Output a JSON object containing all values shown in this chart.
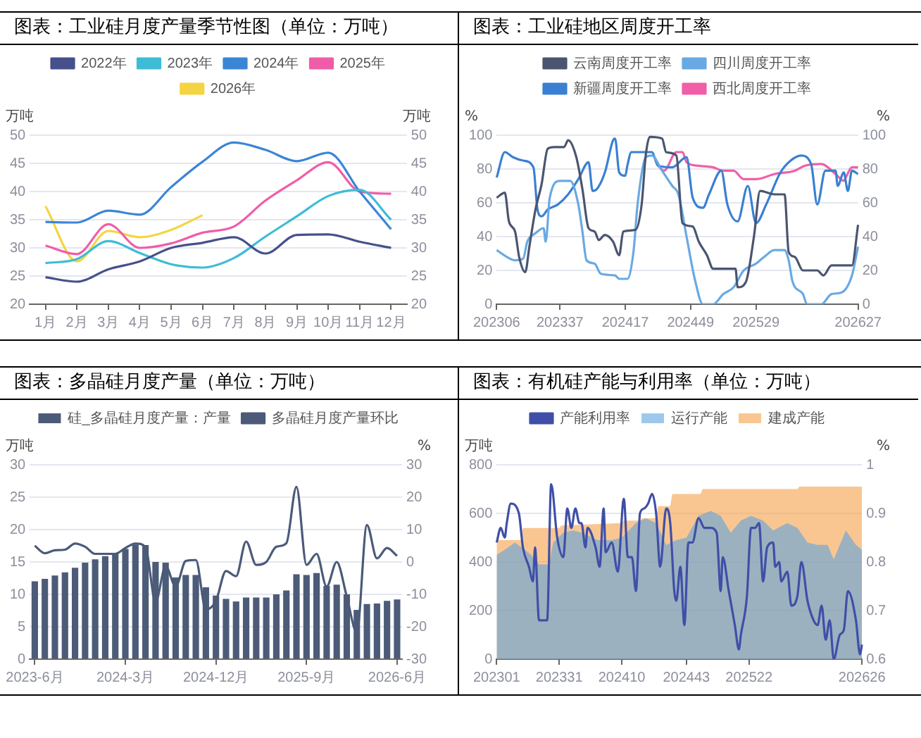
{
  "chart_data": [
    {
      "type": "line",
      "title": "图表：工业硅月度产量季节性图（单位：万吨）",
      "ylabel": "万吨",
      "y2label": "万吨",
      "categories": [
        "1月",
        "2月",
        "3月",
        "4月",
        "5月",
        "6月",
        "7月",
        "8月",
        "9月",
        "10月",
        "11月",
        "12月"
      ],
      "ylim": [
        20,
        50
      ],
      "yticks": [
        20,
        25,
        30,
        35,
        40,
        45,
        50
      ],
      "y2lim": [
        20,
        50
      ],
      "y2ticks": [
        20,
        25,
        30,
        35,
        40,
        45,
        50
      ],
      "grid": "y",
      "legend": "top",
      "series": [
        {
          "name": "2022年",
          "color": "#46508a",
          "values": [
            24.8,
            24.0,
            26.2,
            27.6,
            30.0,
            30.9,
            31.9,
            29.0,
            32.3,
            32.4,
            31.1,
            30.0
          ]
        },
        {
          "name": "2023年",
          "color": "#3ebcd6",
          "values": [
            27.3,
            28.0,
            31.2,
            29.1,
            27.1,
            26.5,
            28.2,
            32.0,
            35.6,
            39.2,
            40.3,
            35.0
          ]
        },
        {
          "name": "2024年",
          "color": "#3b85d6",
          "values": [
            34.6,
            34.5,
            36.6,
            35.9,
            40.8,
            45.3,
            48.7,
            47.4,
            45.4,
            46.9,
            40.0,
            33.3
          ]
        },
        {
          "name": "2025年",
          "color": "#f15ca8",
          "values": [
            30.4,
            28.9,
            34.2,
            30.0,
            30.8,
            32.7,
            33.8,
            38.4,
            42.0,
            45.2,
            40.0,
            39.6
          ]
        },
        {
          "name": "2026年",
          "color": "#f5d442",
          "values": [
            37.4,
            27.6,
            33.0,
            31.9,
            33.2,
            35.8,
            null,
            null,
            null,
            null,
            null,
            null
          ]
        }
      ]
    },
    {
      "type": "line",
      "title": "图表：工业硅地区周度开工率",
      "ylabel": "%",
      "y2label": "%",
      "categories": [
        "202306",
        null,
        null,
        null,
        null,
        null,
        null,
        null,
        null,
        null,
        null,
        null,
        null,
        null,
        null,
        null,
        null,
        null,
        null,
        null,
        null,
        null,
        null,
        null,
        null,
        null,
        null,
        null,
        null,
        null,
        null,
        "202337",
        null,
        null,
        null,
        null,
        null,
        null,
        null,
        null,
        null,
        null,
        null,
        null,
        null,
        null,
        null,
        null,
        null,
        null,
        null,
        null,
        null,
        null,
        null,
        null,
        null,
        null,
        null,
        null,
        null,
        null,
        null,
        "202417",
        null,
        null,
        null,
        null,
        null,
        null,
        null,
        null,
        null,
        null,
        null,
        null,
        null,
        null,
        null,
        null,
        null,
        null,
        null,
        null,
        null,
        null,
        null,
        null,
        null,
        null,
        null,
        null,
        null,
        null,
        null,
        "202449",
        null,
        null,
        null,
        null,
        null,
        null,
        null,
        null,
        null,
        null,
        null,
        null,
        null,
        null,
        null,
        null,
        null,
        null,
        null,
        null,
        null,
        null,
        null,
        null,
        null,
        null,
        null,
        null,
        null,
        null,
        null,
        "202529",
        null,
        null,
        null,
        null,
        null,
        null,
        null,
        null,
        null,
        null,
        null,
        null,
        null,
        null,
        null,
        null,
        null,
        null,
        null,
        null,
        null,
        null,
        null,
        null,
        null,
        null,
        null,
        null,
        null,
        null,
        null,
        null,
        null,
        null,
        null,
        null,
        null,
        null,
        null,
        null,
        null,
        null,
        null,
        null,
        null,
        null,
        null,
        null,
        null,
        "202627"
      ],
      "ylim": [
        0,
        100
      ],
      "yticks": [
        0,
        20,
        40,
        60,
        80,
        100
      ],
      "y2lim": [
        0,
        100
      ],
      "y2ticks": [
        0,
        20,
        40,
        60,
        80,
        100
      ],
      "grid": "y",
      "legend": "top",
      "series": [
        {
          "name": "云南周度开工率",
          "color": "#4a5570",
          "values": [
            63,
            null,
            null,
            null,
            66,
            null,
            49,
            null,
            null,
            43,
            null,
            28,
            null,
            null,
            19,
            null,
            34,
            null,
            null,
            56,
            null,
            null,
            71,
            null,
            null,
            92,
            null,
            null,
            93,
            null,
            null,
            null,
            null,
            93,
            null,
            97,
            null,
            null,
            null,
            87,
            null,
            null,
            68,
            null,
            null,
            45,
            null,
            null,
            43,
            null,
            38,
            null,
            null,
            41,
            null,
            null,
            null,
            37,
            null,
            null,
            29,
            null,
            43,
            null,
            null,
            null,
            null,
            null,
            44,
            null,
            null,
            59,
            null,
            88,
            null,
            99,
            null,
            null,
            null,
            null,
            null,
            98,
            null,
            90,
            null,
            null,
            null,
            null,
            88,
            null,
            null,
            48,
            null,
            null,
            null,
            null,
            46,
            null,
            null,
            37,
            null,
            null,
            null,
            29,
            null,
            null,
            21,
            null,
            null,
            null,
            null,
            null,
            21,
            null,
            null,
            null,
            null,
            21,
            10,
            null,
            null,
            null,
            13,
            null,
            null,
            null,
            40,
            null,
            null,
            67,
            null,
            null,
            null,
            null,
            null,
            null,
            65,
            null,
            null,
            null,
            null,
            65,
            null,
            31,
            null,
            null,
            28,
            null,
            null,
            null,
            20,
            null,
            null,
            null,
            null,
            null,
            null,
            20,
            null,
            null,
            17,
            null,
            null,
            null,
            23,
            null,
            null,
            null,
            null,
            null,
            null,
            null,
            null,
            null,
            23,
            null,
            null,
            47
          ]
        },
        {
          "name": "四川周度开工率",
          "color": "#69a9e3",
          "values": [
            32,
            null,
            null,
            null,
            null,
            28,
            null,
            null,
            null,
            26,
            null,
            null,
            null,
            27,
            null,
            37,
            null,
            null,
            null,
            42,
            null,
            null,
            null,
            45,
            37,
            null,
            63,
            null,
            null,
            null,
            null,
            73,
            null,
            null,
            null,
            null,
            73,
            null,
            null,
            null,
            59,
            null,
            43,
            null,
            26,
            null,
            null,
            null,
            24,
            null,
            null,
            18,
            null,
            null,
            null,
            null,
            null,
            null,
            17,
            null,
            15,
            null,
            null,
            null,
            15,
            null,
            null,
            31,
            null,
            59,
            null,
            null,
            null,
            87,
            null,
            null,
            88,
            null,
            null,
            null,
            null,
            79,
            null,
            null,
            null,
            null,
            70,
            null,
            null,
            65,
            null,
            null,
            null,
            40,
            null,
            null,
            null,
            15,
            null,
            null,
            null,
            0,
            null,
            null,
            null,
            null,
            0,
            null,
            null,
            null,
            null,
            6,
            null,
            null,
            null,
            null,
            10,
            null,
            null,
            null,
            null,
            20,
            null,
            null,
            null,
            null,
            null,
            24,
            null,
            null,
            null,
            28,
            null,
            null,
            null,
            null,
            32,
            null,
            null,
            null,
            null,
            32,
            null,
            26,
            null,
            13,
            null,
            null,
            null,
            null,
            6,
            null,
            0,
            null,
            null,
            null,
            null,
            null,
            null,
            0,
            null,
            null,
            null,
            null,
            6,
            null,
            null,
            null,
            null,
            7,
            null,
            null,
            null,
            null,
            17,
            null,
            null,
            34
          ]
        },
        {
          "name": "新疆周度开工率",
          "color": "#3a80d2",
          "values": [
            75,
            null,
            null,
            null,
            90,
            null,
            null,
            null,
            87,
            null,
            null,
            null,
            null,
            85,
            null,
            null,
            null,
            null,
            81,
            null,
            56,
            null,
            52,
            null,
            null,
            56,
            null,
            null,
            null,
            null,
            59,
            null,
            null,
            null,
            null,
            65,
            null,
            null,
            null,
            null,
            74,
            null,
            null,
            null,
            null,
            84,
            null,
            67,
            null,
            68,
            null,
            null,
            null,
            78,
            null,
            null,
            null,
            97,
            98,
            null,
            78,
            null,
            null,
            76,
            82,
            null,
            90,
            null,
            null,
            null,
            null,
            null,
            null,
            null,
            null,
            null,
            90,
            null,
            null,
            82,
            null,
            null,
            null,
            null,
            null,
            null,
            81,
            null,
            null,
            null,
            null,
            null,
            null,
            87,
            null,
            null,
            63,
            null,
            null,
            null,
            null,
            57,
            null,
            null,
            65,
            null,
            null,
            null,
            null,
            null,
            79,
            null,
            null,
            59,
            null,
            null,
            null,
            null,
            49,
            null,
            null,
            null,
            null,
            70,
            null,
            null,
            null,
            48,
            null,
            null,
            null,
            null,
            59,
            null,
            null,
            null,
            null,
            null,
            null,
            78,
            null,
            null,
            null,
            null,
            85,
            null,
            null,
            null,
            null,
            88,
            null,
            null,
            null,
            null,
            83,
            null,
            null,
            59,
            null,
            null,
            null,
            79,
            null,
            null,
            null,
            null,
            79,
            70,
            null,
            null,
            78,
            null,
            67,
            null,
            79,
            null,
            null,
            77
          ]
        },
        {
          "name": "西北周度开工率",
          "color": "#f05fa8",
          "values": [
            null,
            null,
            null,
            null,
            null,
            null,
            null,
            null,
            null,
            null,
            null,
            null,
            null,
            null,
            null,
            null,
            null,
            null,
            null,
            null,
            null,
            null,
            null,
            null,
            null,
            null,
            null,
            null,
            null,
            null,
            null,
            null,
            null,
            null,
            null,
            null,
            null,
            null,
            null,
            null,
            null,
            null,
            null,
            null,
            null,
            null,
            null,
            null,
            null,
            null,
            null,
            null,
            null,
            null,
            null,
            null,
            null,
            null,
            null,
            null,
            null,
            null,
            null,
            null,
            null,
            null,
            null,
            null,
            null,
            null,
            null,
            null,
            null,
            null,
            null,
            null,
            null,
            null,
            null,
            82,
            null,
            null,
            79,
            null,
            null,
            null,
            null,
            null,
            90,
            null,
            null,
            90,
            null,
            84,
            null,
            null,
            null,
            null,
            82,
            null,
            null,
            null,
            null,
            null,
            null,
            null,
            81,
            null,
            null,
            null,
            null,
            79,
            null,
            null,
            null,
            null,
            79,
            null,
            null,
            null,
            null,
            74,
            null,
            null,
            null,
            null,
            null,
            74,
            null,
            null,
            null,
            null,
            null,
            null,
            null,
            null,
            77,
            null,
            null,
            null,
            null,
            null,
            null,
            null,
            null,
            null,
            79,
            null,
            null,
            null,
            null,
            82,
            null,
            null,
            null,
            null,
            null,
            null,
            null,
            83,
            null,
            null,
            null,
            null,
            null,
            null,
            77,
            null,
            null,
            null,
            73,
            75,
            null,
            null,
            81,
            null,
            null,
            81
          ]
        }
      ]
    },
    {
      "type": "bar",
      "title": "图表：多晶硅月度产量（单位：万吨）",
      "ylabel": "万吨",
      "y2label": "%",
      "categories": [
        "2023-6月",
        null,
        null,
        null,
        null,
        null,
        null,
        null,
        null,
        "2024-3月",
        null,
        null,
        null,
        null,
        null,
        null,
        null,
        null,
        "2024-12月",
        null,
        null,
        null,
        null,
        null,
        null,
        null,
        null,
        "2025-9月",
        null,
        null,
        null,
        null,
        null,
        null,
        null,
        null,
        "2026-6月"
      ],
      "ylim": [
        0,
        30
      ],
      "yticks": [
        0,
        5,
        10,
        15,
        20,
        25,
        30
      ],
      "y2lim": [
        -30,
        30
      ],
      "y2ticks": [
        -30,
        -20,
        -10,
        0,
        10,
        20,
        30
      ],
      "grid": "y",
      "legend": "top",
      "series": [
        {
          "name": "硅_多晶硅月度产量：产量",
          "color": "#4c5b78",
          "values": [
            12.0,
            12.4,
            12.9,
            13.4,
            14.1,
            14.9,
            15.4,
            15.9,
            16.3,
            17.0,
            17.7,
            17.6,
            15.0,
            14.9,
            12.6,
            13.0,
            13.0,
            11.1,
            9.8,
            9.3,
            8.9,
            9.5,
            9.5,
            9.5,
            10.0,
            10.6,
            13.1,
            13.0,
            13.3,
            11.3,
            11.5,
            10.0,
            7.6,
            8.5,
            8.6,
            9.0,
            9.2
          ]
        },
        {
          "name": "多晶硅月度产量环比",
          "type": "line",
          "axis": "y2",
          "color": "#4a5a78",
          "values": [
            5.0,
            2.7,
            3.6,
            3.8,
            5.7,
            4.7,
            2.5,
            2.5,
            2.5,
            4.3,
            5.7,
            4.6,
            -12.3,
            -1.3,
            -7.6,
            0.3,
            0.6,
            -14.7,
            -12.0,
            -2.8,
            -4.4,
            6.3,
            -0.9,
            0.0,
            4.7,
            5.8,
            23.2,
            -0.9,
            2.5,
            -7.6,
            0.0,
            -10.7,
            -21.8,
            11.4,
            1.1,
            4.3,
            1.9
          ]
        }
      ]
    },
    {
      "type": "line",
      "title": "图表：有机硅产能与利用率（单位：万吨）",
      "ylabel": "万吨",
      "y2label": "%",
      "categories": [
        "202301",
        null,
        null,
        null,
        null,
        null,
        null,
        null,
        null,
        null,
        null,
        null,
        null,
        null,
        null,
        null,
        null,
        null,
        null,
        null,
        null,
        null,
        null,
        null,
        null,
        null,
        null,
        null,
        null,
        null,
        null,
        "202331",
        null,
        null,
        null,
        null,
        null,
        null,
        null,
        null,
        null,
        null,
        null,
        null,
        null,
        null,
        null,
        null,
        null,
        null,
        null,
        null,
        null,
        null,
        null,
        null,
        null,
        null,
        null,
        null,
        null,
        null,
        "202410",
        null,
        null,
        null,
        null,
        null,
        null,
        null,
        null,
        null,
        null,
        null,
        null,
        null,
        null,
        null,
        null,
        null,
        null,
        null,
        null,
        null,
        null,
        null,
        null,
        null,
        null,
        null,
        null,
        null,
        null,
        null,
        "202443",
        null,
        null,
        null,
        null,
        null,
        null,
        null,
        null,
        null,
        null,
        null,
        null,
        null,
        null,
        null,
        null,
        null,
        null,
        null,
        null,
        null,
        null,
        null,
        null,
        null,
        null,
        null,
        null,
        null,
        null,
        "202522",
        null,
        null,
        null,
        null,
        null,
        null,
        null,
        null,
        null,
        null,
        null,
        null,
        null,
        null,
        null,
        null,
        null,
        null,
        null,
        null,
        null,
        null,
        null,
        null,
        null,
        null,
        null,
        null,
        null,
        null,
        null,
        null,
        null,
        null,
        null,
        null,
        null,
        null,
        null,
        null,
        null,
        null,
        null,
        null,
        null,
        null,
        null,
        null,
        null,
        null,
        null,
        null,
        null,
        null,
        null,
        "202626"
      ],
      "ylim": [
        0,
        800
      ],
      "yticks": [
        0,
        200,
        400,
        600,
        800
      ],
      "y2lim": [
        0.6,
        1
      ],
      "y2ticks": [
        0.6,
        0.7,
        0.8,
        0.9,
        1
      ],
      "grid": "y",
      "legend": "top",
      "series": [
        {
          "name": "产能利用率",
          "axis": "y2",
          "color": "#3f4fa8",
          "values": [
            0.84,
            null,
            0.87,
            null,
            0.85,
            0.88,
            null,
            0.92,
            null,
            null,
            null,
            0.9,
            null,
            0.83,
            null,
            null,
            0.79,
            null,
            0.76,
            0.83,
            null,
            0.68,
            null,
            0.68,
            null,
            0.68,
            null,
            0.96,
            null,
            null,
            0.85,
            null,
            null,
            0.81,
            null,
            0.91,
            null,
            0.87,
            null,
            0.91,
            null,
            0.88,
            0.88,
            null,
            0.83,
            0.87,
            null,
            null,
            null,
            0.83,
            null,
            0.79,
            null,
            0.91,
            0.82,
            null,
            null,
            0.84,
            null,
            null,
            0.78,
            null,
            null,
            0.93,
            null,
            0.81,
            null,
            0.81,
            null,
            0.74,
            null,
            0.9,
            null,
            0.91,
            null,
            0.92,
            null,
            0.94,
            null,
            0.9,
            null,
            0.79,
            null,
            null,
            0.91,
            null,
            0.88,
            null,
            0.74,
            0.72,
            null,
            0.79,
            null,
            0.67,
            null,
            0.84,
            null,
            0.84,
            null,
            null,
            0.89,
            null,
            null,
            0.87,
            null,
            null,
            0.87,
            null,
            null,
            0.86,
            null,
            0.74,
            0.81,
            null,
            null,
            0.74,
            null,
            null,
            0.67,
            null,
            0.62,
            0.65,
            null,
            null,
            0.73,
            null,
            0.87,
            null,
            0.87,
            null,
            0.88,
            null,
            0.76,
            null,
            0.83,
            null,
            null,
            0.84,
            0.79,
            null,
            0.8,
            0.76,
            null,
            null,
            0.78,
            null,
            0.71,
            null,
            null,
            0.73,
            null,
            0.8,
            null,
            null,
            0.72,
            null,
            null,
            0.68,
            null,
            0.67,
            null,
            0.71,
            null,
            0.64,
            null,
            0.68,
            null,
            0.6,
            null,
            null,
            0.65,
            null,
            0.66,
            null,
            0.74,
            null,
            null,
            null,
            0.68,
            null,
            0.61,
            0.63
          ]
        },
        {
          "name": "运行产能",
          "type": "area",
          "color": "#5da3dd",
          "values": [
            430,
            null,
            null,
            null,
            450,
            null,
            null,
            null,
            null,
            480,
            null,
            null,
            null,
            null,
            450,
            null,
            null,
            430,
            null,
            null,
            null,
            390,
            null,
            null,
            null,
            null,
            390,
            null,
            480,
            null,
            null,
            null,
            null,
            520,
            null,
            null,
            null,
            null,
            530,
            null,
            null,
            null,
            520,
            null,
            null,
            null,
            null,
            null,
            null,
            null,
            490,
            null,
            null,
            null,
            null,
            null,
            null,
            490,
            null,
            null,
            null,
            null,
            500,
            null,
            null,
            null,
            null,
            null,
            null,
            560,
            null,
            null,
            null,
            null,
            580,
            null,
            null,
            null,
            null,
            560,
            null,
            null,
            null,
            null,
            470,
            null,
            null,
            null,
            null,
            490,
            null,
            null,
            null,
            null,
            500,
            null,
            null,
            null,
            null,
            null,
            590,
            null,
            null,
            null,
            null,
            null,
            610,
            null,
            null,
            null,
            null,
            590,
            null,
            null,
            null,
            null,
            520,
            null,
            null,
            null,
            null,
            570,
            null,
            null,
            null,
            null,
            590,
            null,
            null,
            null,
            null,
            null,
            570,
            null,
            null,
            null,
            null,
            530,
            null,
            null,
            null,
            null,
            null,
            null,
            560,
            null,
            null,
            null,
            null,
            540,
            null,
            null,
            null,
            null,
            480,
            null,
            null,
            null,
            null,
            470,
            null,
            null,
            null,
            null,
            470,
            null,
            null,
            410,
            null,
            null,
            null,
            null,
            null,
            530,
            null,
            null,
            null,
            null,
            470,
            null,
            null,
            450
          ]
        },
        {
          "name": "建成产能",
          "type": "area",
          "color": "#f5a04a",
          "values": [
            490,
            null,
            null,
            null,
            null,
            null,
            null,
            null,
            null,
            null,
            null,
            null,
            490,
            540,
            null,
            null,
            null,
            null,
            null,
            null,
            null,
            null,
            null,
            null,
            null,
            null,
            null,
            null,
            null,
            null,
            null,
            540,
            550,
            null,
            null,
            null,
            null,
            null,
            null,
            null,
            null,
            null,
            null,
            null,
            null,
            null,
            null,
            null,
            null,
            null,
            null,
            null,
            null,
            null,
            null,
            null,
            null,
            null,
            null,
            null,
            null,
            null,
            560,
            570,
            null,
            null,
            null,
            null,
            null,
            null,
            null,
            570,
            580,
            null,
            null,
            null,
            null,
            null,
            null,
            580,
            630,
            null,
            null,
            null,
            null,
            null,
            630,
            680,
            null,
            null,
            null,
            null,
            null,
            null,
            null,
            null,
            null,
            null,
            null,
            null,
            null,
            680,
            700,
            null,
            null,
            null,
            null,
            null,
            null,
            null,
            null,
            null,
            null,
            null,
            null,
            null,
            null,
            null,
            null,
            null,
            null,
            null,
            null,
            null,
            null,
            null,
            null,
            null,
            null,
            null,
            null,
            null,
            null,
            null,
            null,
            null,
            null,
            null,
            null,
            null,
            null,
            null,
            null,
            null,
            null,
            null,
            null,
            null,
            null,
            700,
            710,
            null,
            null,
            null,
            null,
            null,
            null,
            null,
            null,
            null,
            null,
            null,
            null,
            null,
            null,
            null,
            null,
            null,
            null,
            null,
            null,
            null,
            null,
            null,
            null,
            null,
            null,
            null,
            null,
            null,
            null,
            710
          ]
        }
      ]
    }
  ]
}
